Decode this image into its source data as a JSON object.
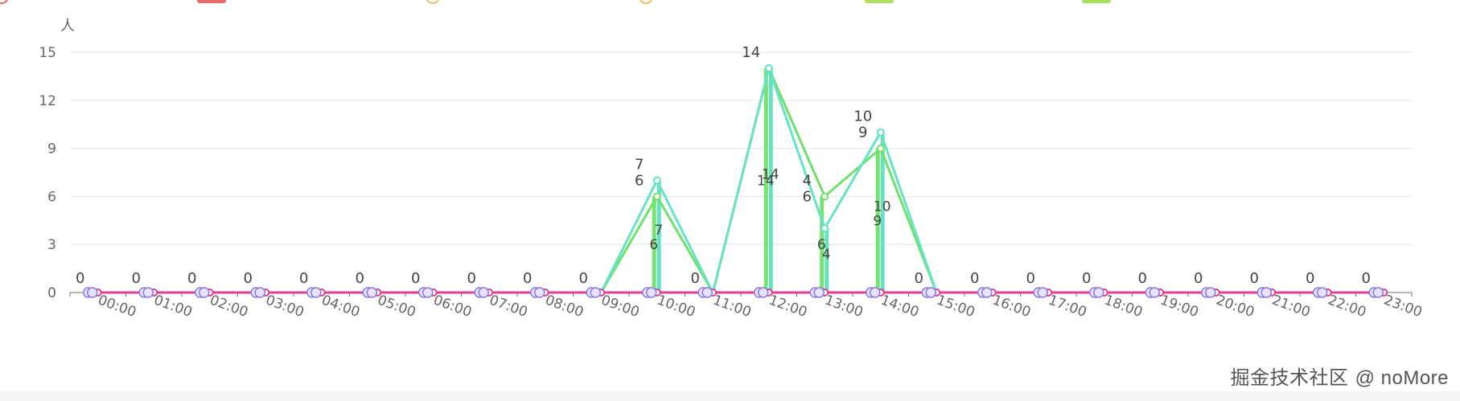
{
  "watermark": {
    "site": "掘金技术社区",
    "user": "@ noMore"
  },
  "chart_data": {
    "type": "bar+line",
    "ylabel": "人",
    "ylim": [
      0,
      15
    ],
    "yticks": [
      0,
      3,
      6,
      9,
      12,
      15
    ],
    "grid": true,
    "legend_position": "top",
    "categories": [
      "00:00",
      "01:00",
      "02:00",
      "03:00",
      "04:00",
      "05:00",
      "06:00",
      "07:00",
      "08:00",
      "09:00",
      "10:00",
      "11:00",
      "12:00",
      "13:00",
      "14:00",
      "15:00",
      "16:00",
      "17:00",
      "18:00",
      "19:00",
      "20:00",
      "21:00",
      "22:00",
      "23:00"
    ],
    "bar_series": [
      {
        "color": "#6fe06a",
        "values": [
          0,
          0,
          0,
          0,
          0,
          0,
          0,
          0,
          0,
          0,
          6,
          0,
          14,
          6,
          9,
          0,
          0,
          0,
          0,
          0,
          0,
          0,
          0,
          0
        ]
      },
      {
        "color": "#5ee0c0",
        "values": [
          0,
          0,
          0,
          0,
          0,
          0,
          0,
          0,
          0,
          0,
          7,
          0,
          14,
          4,
          10,
          0,
          0,
          0,
          0,
          0,
          0,
          0,
          0,
          0
        ]
      }
    ],
    "line_series": [
      {
        "color": "#6fe06a",
        "values": [
          0,
          0,
          0,
          0,
          0,
          0,
          0,
          0,
          0,
          0,
          6,
          0,
          14,
          6,
          9,
          0,
          0,
          0,
          0,
          0,
          0,
          0,
          0,
          0
        ]
      },
      {
        "color": "#66e3c4",
        "values": [
          0,
          0,
          0,
          0,
          0,
          0,
          0,
          0,
          0,
          0,
          7,
          0,
          14,
          4,
          10,
          0,
          0,
          0,
          0,
          0,
          0,
          0,
          0,
          0
        ]
      },
      {
        "color": "#e0409a",
        "values": [
          0,
          0,
          0,
          0,
          0,
          0,
          0,
          0,
          0,
          0,
          0,
          0,
          0,
          0,
          0,
          0,
          0,
          0,
          0,
          0,
          0,
          0,
          0,
          0
        ]
      }
    ],
    "legend_swatch_colors": [
      "#e86a6a",
      "#f0c070",
      "#e8c050",
      "#b0e060",
      "#a8e060"
    ]
  }
}
